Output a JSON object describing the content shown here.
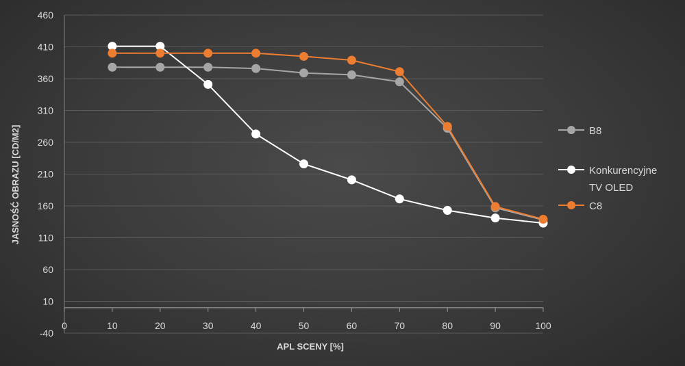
{
  "chart_data": {
    "type": "line",
    "title": "",
    "xlabel": "APL SCENY [%]",
    "ylabel": "JASNOŚĆ OBRAZU [CD/M2]",
    "xlim": [
      0,
      100
    ],
    "ylim": [
      -40,
      460
    ],
    "x_ticks": [
      0,
      10,
      20,
      30,
      40,
      50,
      60,
      70,
      80,
      90,
      100
    ],
    "y_ticks": [
      -40,
      10,
      60,
      110,
      160,
      210,
      260,
      310,
      360,
      410,
      460
    ],
    "x_axis_at_y": 0,
    "grid": "horizontal",
    "legend_position": "right",
    "x": [
      10,
      20,
      30,
      40,
      50,
      60,
      70,
      80,
      90,
      100
    ],
    "series": [
      {
        "name": "B8",
        "color": "#a6a6a6",
        "values": [
          378,
          378,
          378,
          376,
          369,
          366,
          355,
          282,
          157,
          138
        ]
      },
      {
        "name": "Konkurencyjne TV OLED",
        "name_lines": [
          "Konkurencyjne",
          "TV OLED"
        ],
        "color": "#ffffff",
        "values": [
          411,
          411,
          351,
          273,
          226,
          201,
          171,
          153,
          141,
          133
        ]
      },
      {
        "name": "C8",
        "color": "#ed7d31",
        "values": [
          400,
          400,
          400,
          400,
          395,
          389,
          371,
          285,
          159,
          139
        ]
      }
    ]
  }
}
